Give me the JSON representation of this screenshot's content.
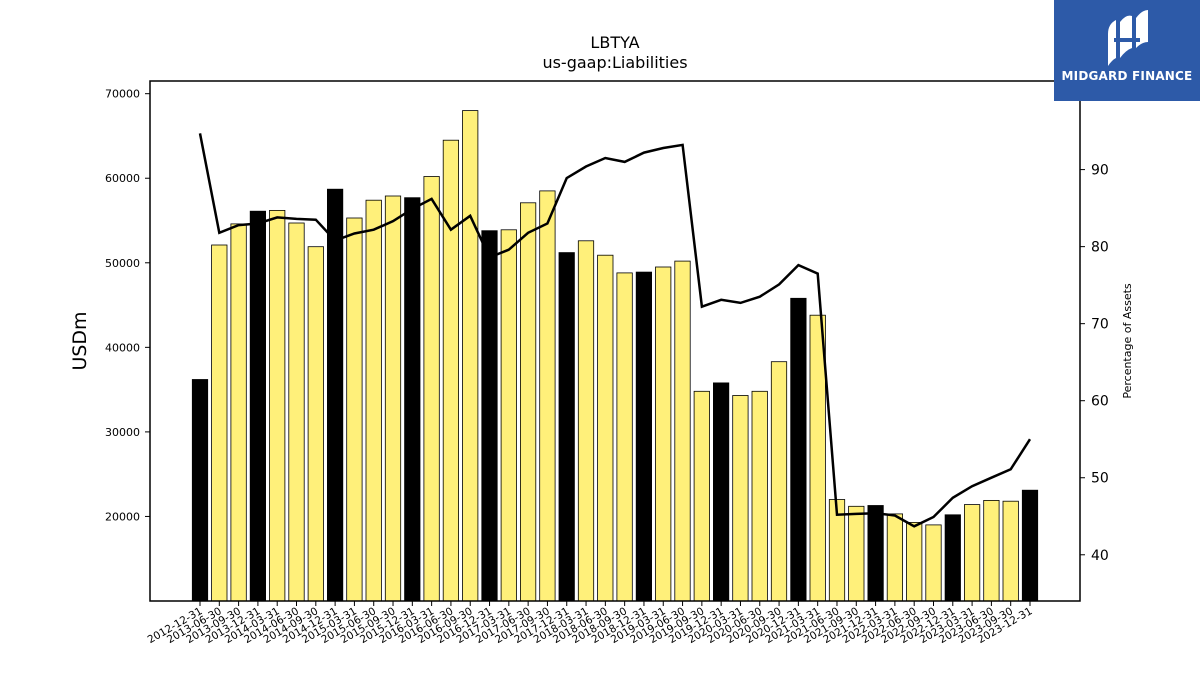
{
  "chart_data": {
    "type": "bar",
    "title": "LBTYA",
    "subtitle": "us-gaap:Liabilities",
    "ylabel": "USDm",
    "y2label": "Percentage of Assets",
    "ylim": [
      10000,
      71500
    ],
    "y2lim": [
      34,
      101.5
    ],
    "yticks": [
      20000,
      30000,
      40000,
      50000,
      60000,
      70000
    ],
    "y2ticks": [
      40,
      50,
      60,
      70,
      80,
      90
    ],
    "categories": [
      "2012-12-31",
      "2013-06-30",
      "2013-09-30",
      "2013-12-31",
      "2014-03-31",
      "2014-06-30",
      "2014-09-30",
      "2014-12-31",
      "2015-03-31",
      "2015-06-30",
      "2015-09-30",
      "2015-12-31",
      "2016-03-31",
      "2016-06-30",
      "2016-09-30",
      "2016-12-31",
      "2017-03-31",
      "2017-06-30",
      "2017-09-30",
      "2017-12-31",
      "2018-03-31",
      "2018-06-30",
      "2018-09-30",
      "2018-12-31",
      "2019-03-31",
      "2019-06-30",
      "2019-09-30",
      "2019-12-31",
      "2020-03-31",
      "2020-06-30",
      "2020-09-30",
      "2020-12-31",
      "2021-03-31",
      "2021-06-30",
      "2021-09-30",
      "2021-12-31",
      "2022-03-31",
      "2022-06-30",
      "2022-09-30",
      "2022-12-31",
      "2023-03-31",
      "2023-06-30",
      "2023-09-30",
      "2023-12-31"
    ],
    "series": [
      {
        "kind": "bar",
        "values": [
          36200,
          52100,
          54600,
          56100,
          56200,
          54700,
          51900,
          58700,
          55300,
          57400,
          57900,
          57700,
          60200,
          64500,
          68000,
          53800,
          53900,
          57100,
          58500,
          51200,
          52600,
          50900,
          48800,
          48900,
          49500,
          50200,
          34800,
          35800,
          34300,
          34800,
          38300,
          45800,
          43800,
          22000,
          21200,
          21300,
          20300,
          19300,
          19000,
          20200,
          21400,
          21900,
          21800,
          23100
        ],
        "highlight": [
          true,
          false,
          false,
          true,
          false,
          false,
          false,
          true,
          false,
          false,
          false,
          true,
          false,
          false,
          false,
          true,
          false,
          false,
          false,
          true,
          false,
          false,
          false,
          true,
          false,
          false,
          false,
          true,
          false,
          false,
          false,
          true,
          false,
          false,
          false,
          true,
          false,
          false,
          false,
          true,
          false,
          false,
          false,
          true
        ],
        "fill": "#fff07a",
        "highlight_fill": "#000000"
      },
      {
        "kind": "line",
        "axis": "right",
        "values": [
          94.7,
          81.8,
          82.8,
          83.0,
          83.8,
          83.6,
          83.5,
          80.8,
          81.7,
          82.2,
          83.3,
          84.9,
          86.2,
          82.2,
          84.0,
          78.6,
          79.6,
          81.8,
          83.0,
          88.9,
          90.4,
          91.5,
          91.0,
          92.2,
          92.8,
          93.2,
          72.2,
          73.1,
          72.7,
          73.5,
          75.1,
          77.6,
          76.5,
          45.2,
          45.3,
          45.4,
          45.1,
          43.7,
          44.9,
          47.4,
          48.9,
          50.0,
          51.1,
          55.0
        ],
        "color": "#000000"
      }
    ],
    "grid": false,
    "legend": "none"
  },
  "logo": {
    "text": "MIDGARD FINANCE",
    "icon": "midgard-logo-icon",
    "bg": "#2d5aa8"
  }
}
